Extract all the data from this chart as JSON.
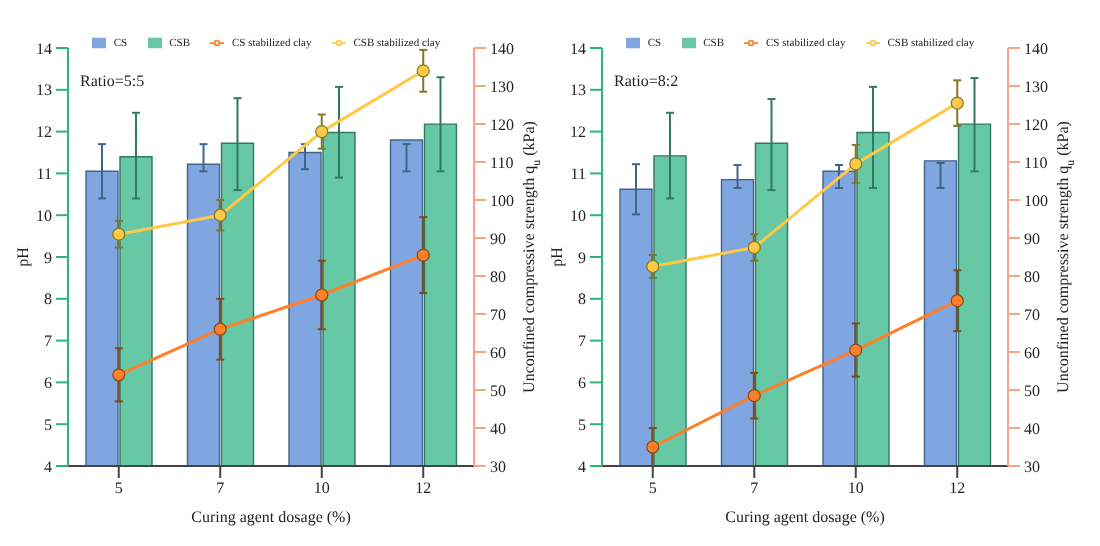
{
  "chart_data": [
    {
      "type": "bar",
      "categories": [
        "5",
        "7",
        "10",
        "12"
      ],
      "xlabel": "Curing agent dosage (%)",
      "ylabel": "pH",
      "y2label": "Unconfined compressive strength q$_{u}$ (kPa)",
      "ylim": [
        4,
        14
      ],
      "yticks": [
        4,
        5,
        6,
        7,
        8,
        9,
        10,
        11,
        12,
        13,
        14
      ],
      "y2lim": [
        30,
        140
      ],
      "y2ticks": [
        30,
        40,
        50,
        60,
        70,
        80,
        90,
        100,
        110,
        120,
        130,
        140
      ],
      "legend": "top",
      "annotations": [
        "Ratio=5:5"
      ],
      "series": [
        {
          "name": "CS",
          "color": "#7fa6e0",
          "values": [
            11.05,
            11.22,
            11.5,
            11.8
          ],
          "errors": [
            0.65,
            [
              11.05,
              11.7
            ],
            [
              11.1,
              11.7
            ],
            [
              11.05,
              11.7
            ]
          ]
        },
        {
          "name": "CSB",
          "color": "#66c8a5",
          "values": [
            11.4,
            11.72,
            11.98,
            12.18
          ],
          "errors": [
            [
              10.4,
              12.45
            ],
            [
              10.6,
              12.8
            ],
            [
              10.9,
              13.07
            ],
            [
              11.05,
              13.3
            ]
          ]
        },
        {
          "name": "CS stabilized clay",
          "type": "line",
          "axis": "y2",
          "marker": "circle",
          "color": "#ff7f2a",
          "values": [
            54,
            66,
            75,
            85.5
          ],
          "errors": [
            7,
            8,
            9,
            10
          ]
        },
        {
          "name": "CSB stabilized clay",
          "type": "line",
          "axis": "y2",
          "marker": "circle",
          "color": "#ffc845",
          "values": [
            91,
            96,
            118,
            134
          ],
          "errors": [
            3.5,
            4,
            4.5,
            5.5
          ]
        }
      ]
    },
    {
      "type": "bar",
      "categories": [
        "5",
        "7",
        "10",
        "12"
      ],
      "xlabel": "Curing agent dosage (%)",
      "ylabel": "pH",
      "y2label": "Unconfined compressive strength q$_{u}$ (kPa)",
      "ylim": [
        4,
        14
      ],
      "yticks": [
        4,
        5,
        6,
        7,
        8,
        9,
        10,
        11,
        12,
        13,
        14
      ],
      "y2lim": [
        30,
        140
      ],
      "y2ticks": [
        30,
        40,
        50,
        60,
        70,
        80,
        90,
        100,
        110,
        120,
        130,
        140
      ],
      "legend": "top",
      "annotations": [
        "Ratio=8:2"
      ],
      "series": [
        {
          "name": "CS",
          "color": "#7fa6e0",
          "values": [
            10.62,
            10.85,
            11.05,
            11.3
          ],
          "errors": [
            0.6,
            [
              10.65,
              11.2
            ],
            [
              10.65,
              11.2
            ],
            [
              10.65,
              11.25
            ]
          ]
        },
        {
          "name": "CSB",
          "color": "#66c8a5",
          "values": [
            11.42,
            11.72,
            11.98,
            12.18
          ],
          "errors": [
            [
              10.4,
              12.45
            ],
            [
              10.6,
              12.78
            ],
            [
              10.65,
              13.07
            ],
            [
              11.05,
              13.28
            ]
          ]
        },
        {
          "name": "CS stabilized clay",
          "type": "line",
          "axis": "y2",
          "marker": "circle",
          "color": "#ff7f2a",
          "values": [
            35,
            48.5,
            60.5,
            73.5
          ],
          "errors": [
            5,
            6,
            7,
            8
          ]
        },
        {
          "name": "CSB stabilized clay",
          "type": "line",
          "axis": "y2",
          "marker": "circle",
          "color": "#ffc845",
          "values": [
            82.5,
            87.5,
            109.5,
            125.5
          ],
          "errors": [
            3,
            3.5,
            5,
            6
          ]
        }
      ]
    }
  ]
}
